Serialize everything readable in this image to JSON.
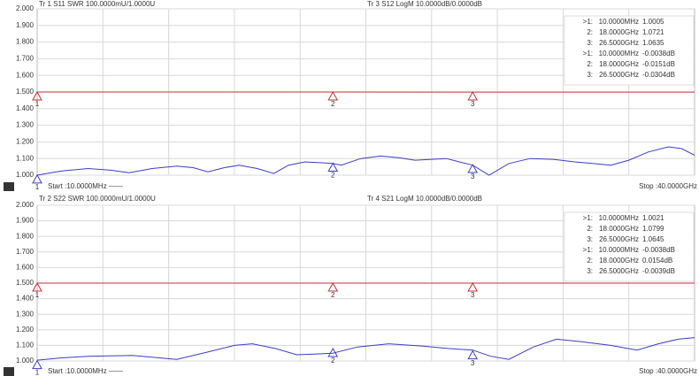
{
  "chart_data": [
    {
      "type": "line",
      "panel": "1",
      "title": "Tr 1  S11 SWR 100.0000mU/1.0000U",
      "title2": "Tr 3  S12 LogM 10.0000dB/0.0000dB",
      "start_label": "Start :10.0000MHz ——",
      "stop_label": "Stop :40.0000GHz",
      "xlim": [
        0.01,
        40
      ],
      "ylim": [
        1,
        2
      ],
      "y2lim": [
        -50,
        50
      ],
      "yticks": [
        {
          "value": 1,
          "label": "1.000"
        },
        {
          "value": 1.1,
          "label": "1.100"
        },
        {
          "value": 1.2,
          "label": "1.200"
        },
        {
          "value": 1.3,
          "label": "1.300"
        },
        {
          "value": 1.4,
          "label": "1.400"
        },
        {
          "value": 1.5,
          "label": "1.500"
        },
        {
          "value": 1.6,
          "label": "1.600"
        },
        {
          "value": 1.7,
          "label": "1.700"
        },
        {
          "value": 1.8,
          "label": "1.800"
        },
        {
          "value": 1.9,
          "label": "1.900"
        },
        {
          "value": 2,
          "label": "2.000"
        }
      ],
      "series": [
        {
          "color": "#3c3cc8",
          "x": [
            0.01,
            1.5,
            3.1,
            4.5,
            5.6,
            7,
            8.5,
            9.5,
            10.4,
            11.4,
            12.3,
            13.4,
            14.4,
            15.3,
            16.3,
            17.2,
            18,
            18.5,
            19.7,
            20.9,
            22,
            23,
            24,
            24.9,
            25.7,
            26.5,
            27.5,
            28.7,
            30,
            31.4,
            32.7,
            33.8,
            34.9,
            36,
            37.2,
            38.4,
            39.2,
            40
          ],
          "values": [
            1.0,
            1.025,
            1.04,
            1.03,
            1.015,
            1.04,
            1.055,
            1.045,
            1.02,
            1.045,
            1.06,
            1.04,
            1.01,
            1.06,
            1.08,
            1.075,
            1.07,
            1.06,
            1.1,
            1.115,
            1.105,
            1.09,
            1.095,
            1.1,
            1.08,
            1.06,
            1.0,
            1.07,
            1.1,
            1.095,
            1.08,
            1.07,
            1.06,
            1.09,
            1.14,
            1.17,
            1.16,
            1.12
          ]
        },
        {
          "color": "#c03030",
          "axis": "y2",
          "x": [
            0.01,
            10,
            18,
            26.5,
            40
          ],
          "values": [
            -0.0038,
            -0.01,
            -0.0151,
            -0.0304,
            -0.04
          ]
        }
      ],
      "markers": [
        {
          "series": 0,
          "color": "#3c3cc8",
          "ids": [
            1,
            2,
            3
          ],
          "labels": [
            ">1:",
            "2:",
            "3:"
          ],
          "x": [
            0.01,
            18,
            26.5
          ],
          "x_labels": [
            "10.0000MHz",
            "18.0000GHz",
            "26.5000GHz"
          ],
          "values": [
            1.0005,
            1.0721,
            1.0635
          ]
        },
        {
          "series": 1,
          "color": "#c03030",
          "ids": [
            1,
            2,
            3
          ],
          "labels": [
            ">1:",
            "2:",
            "3:"
          ],
          "x": [
            0.01,
            18,
            26.5
          ],
          "x_labels": [
            "10.0000MHz",
            "18.0000GHz",
            "26.5000GHz"
          ],
          "values": [
            -0.0038,
            -0.0151,
            -0.0304
          ],
          "value_labels": [
            "-0.0038dB",
            "-0.0151dB",
            "-0.0304dB"
          ]
        }
      ]
    },
    {
      "type": "line",
      "panel": "2",
      "title": "Tr 2  S22 SWR 100.0000mU/1.0000U",
      "title2": "Tr 4  S21 LogM 10.0000dB/0.0000dB",
      "start_label": "Start :10.0000MHz ——",
      "stop_label": "Stop :40.0000GHz",
      "xlim": [
        0.01,
        40
      ],
      "ylim": [
        1,
        2
      ],
      "y2lim": [
        -50,
        50
      ],
      "yticks": [
        {
          "value": 1,
          "label": "1.000"
        },
        {
          "value": 1.1,
          "label": "1.100"
        },
        {
          "value": 1.2,
          "label": "1.200"
        },
        {
          "value": 1.3,
          "label": "1.300"
        },
        {
          "value": 1.4,
          "label": "1.400"
        },
        {
          "value": 1.5,
          "label": "1.500"
        },
        {
          "value": 1.6,
          "label": "1.600"
        },
        {
          "value": 1.7,
          "label": "1.700"
        },
        {
          "value": 1.8,
          "label": "1.800"
        },
        {
          "value": 1.9,
          "label": "1.900"
        },
        {
          "value": 2,
          "label": "2.000"
        }
      ],
      "series": [
        {
          "color": "#3c3cc8",
          "x": [
            0.01,
            1.5,
            3.1,
            5.8,
            8.5,
            10.5,
            12,
            13.1,
            14.5,
            15.8,
            17,
            18,
            19.5,
            21.4,
            23.5,
            25,
            26.5,
            27.6,
            28.7,
            30.2,
            31.6,
            33,
            34.9,
            36.5,
            37.8,
            39,
            40
          ],
          "values": [
            1.005,
            1.02,
            1.03,
            1.035,
            1.01,
            1.06,
            1.1,
            1.11,
            1.08,
            1.04,
            1.045,
            1.05,
            1.09,
            1.11,
            1.095,
            1.08,
            1.07,
            1.03,
            1.01,
            1.09,
            1.14,
            1.125,
            1.1,
            1.07,
            1.11,
            1.14,
            1.15
          ]
        },
        {
          "color": "#c03030",
          "axis": "y2",
          "x": [
            0.01,
            10,
            18,
            26.5,
            40
          ],
          "values": [
            -0.0038,
            0.01,
            0.0154,
            -0.0039,
            -0.01
          ]
        }
      ],
      "markers": [
        {
          "series": 0,
          "color": "#3c3cc8",
          "ids": [
            1,
            2,
            3
          ],
          "labels": [
            ">1:",
            "2:",
            "3:"
          ],
          "x": [
            0.01,
            18,
            26.5
          ],
          "x_labels": [
            "10.0000MHz",
            "18.0000GHz",
            "26.5000GHz"
          ],
          "values": [
            1.0021,
            1.0799,
            1.0645
          ]
        },
        {
          "series": 1,
          "color": "#c03030",
          "ids": [
            1,
            2,
            3
          ],
          "labels": [
            ">1:",
            "2:",
            "3:"
          ],
          "x": [
            0.01,
            18,
            26.5
          ],
          "x_labels": [
            "10.0000MHz",
            "18.0000GHz",
            "26.5000GHz"
          ],
          "values": [
            -0.0038,
            0.0154,
            -0.0039
          ],
          "value_labels": [
            "-0.0038dB",
            "0.0154dB",
            "-0.0039dB"
          ]
        }
      ]
    }
  ]
}
